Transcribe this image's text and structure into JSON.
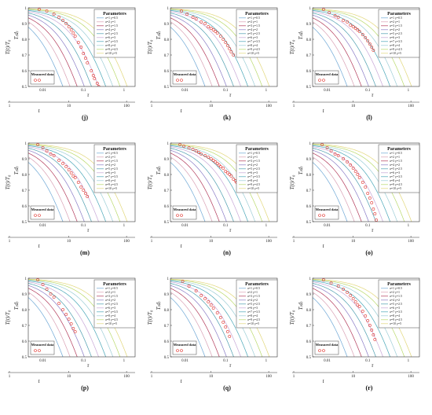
{
  "figure": {
    "legend_title": "Parameters",
    "legend_items": [
      "a=1  γ=0.5",
      "a=2  γ=1",
      "a=3  γ=1.5",
      "a=4  γ=2",
      "a=5  γ=2.5",
      "a=6  γ=3",
      "a=7  γ=3.5",
      "a=8  γ=4",
      "a=9  γ=4.5",
      "a=10  γ=5"
    ],
    "measured_label": "Measured data",
    "y_label": "T(t)/T₀",
    "y_label_inner": "T₍d₎",
    "x_label": "t",
    "x_label_inner": "τ"
  },
  "chart_data": [
    {
      "type": "line",
      "panel_label": "(j)",
      "ylim": [
        0.5,
        1
      ],
      "y_ticks": [
        "0.5",
        "0.6",
        "0.7",
        "0.8",
        "0.9",
        "1"
      ],
      "x_ticks_outer": [
        "1",
        "10",
        "100"
      ],
      "x_ticks_inner": [
        "0.01",
        "0.1",
        "1"
      ],
      "series": [
        {
          "name": "a=1  γ=0.5"
        },
        {
          "name": "a=2  γ=1"
        },
        {
          "name": "a=3  γ=1.5"
        },
        {
          "name": "a=4  γ=2"
        },
        {
          "name": "a=5  γ=2.5"
        },
        {
          "name": "a=6  γ=3"
        },
        {
          "name": "a=7  γ=3.5"
        },
        {
          "name": "a=8  γ=4"
        },
        {
          "name": "a=9  γ=4.5"
        },
        {
          "name": "a=10  γ=5"
        }
      ],
      "measured": {
        "x": [
          1.3,
          2,
          3,
          4,
          5,
          6,
          7,
          8,
          9,
          10,
          12,
          14,
          16,
          18,
          20,
          25,
          28,
          30,
          35,
          38
        ],
        "y": [
          0.99,
          0.98,
          0.96,
          0.94,
          0.92,
          0.9,
          0.88,
          0.86,
          0.84,
          0.82,
          0.78,
          0.75,
          0.71,
          0.68,
          0.65,
          0.6,
          0.57,
          0.55,
          0.52,
          0.5
        ]
      }
    },
    {
      "type": "line",
      "panel_label": "(k)",
      "ylim": [
        0.5,
        1
      ],
      "y_ticks": [
        "0.5",
        "0.6",
        "0.7",
        "0.8",
        "0.9",
        "1"
      ],
      "x_ticks_outer": [
        "1",
        "10",
        "100"
      ],
      "x_ticks_inner": [
        "0.01",
        "0.1",
        "1"
      ],
      "series": [
        {
          "name": "a=1  γ=0.5"
        },
        {
          "name": "a=2  γ=1"
        },
        {
          "name": "a=3  γ=1.5"
        },
        {
          "name": "a=4  γ=2"
        },
        {
          "name": "a=5  γ=2.5"
        },
        {
          "name": "a=6  γ=3"
        },
        {
          "name": "a=7  γ=3.5"
        },
        {
          "name": "a=8  γ=4"
        },
        {
          "name": "a=9  γ=4.5"
        },
        {
          "name": "a=10  γ=5"
        }
      ],
      "measured": {
        "x": [
          1.3,
          1.8,
          2.5,
          3,
          4,
          5,
          6,
          7,
          8,
          9,
          10,
          12,
          14,
          16,
          18,
          20,
          22,
          25
        ],
        "y": [
          0.98,
          0.96,
          0.94,
          0.93,
          0.91,
          0.9,
          0.88,
          0.87,
          0.86,
          0.85,
          0.84,
          0.82,
          0.8,
          0.78,
          0.76,
          0.74,
          0.72,
          0.7
        ]
      }
    },
    {
      "type": "line",
      "panel_label": "(l)",
      "ylim": [
        0.5,
        1
      ],
      "y_ticks": [
        "0.5",
        "0.6",
        "0.7",
        "0.8",
        "0.9",
        "1"
      ],
      "x_ticks_outer": [
        "1",
        "10",
        "100"
      ],
      "x_ticks_inner": [
        "0.01",
        "0.1",
        "1"
      ],
      "series": [
        {
          "name": "a=1  γ=0.5"
        },
        {
          "name": "a=2  γ=1"
        },
        {
          "name": "a=3  γ=1.5"
        },
        {
          "name": "a=4  γ=2"
        },
        {
          "name": "a=5  γ=2.5"
        },
        {
          "name": "a=6  γ=3"
        },
        {
          "name": "a=7  γ=3.5"
        },
        {
          "name": "a=8  γ=4"
        },
        {
          "name": "a=9  γ=4.5"
        },
        {
          "name": "a=10  γ=5"
        }
      ],
      "measured": {
        "x": [
          1.3,
          1.8,
          2.5,
          3,
          4,
          5,
          6,
          7,
          8,
          9,
          10,
          12,
          14,
          16,
          18,
          20,
          22
        ],
        "y": [
          0.99,
          0.97,
          0.95,
          0.94,
          0.92,
          0.91,
          0.89,
          0.88,
          0.87,
          0.86,
          0.85,
          0.83,
          0.81,
          0.79,
          0.77,
          0.75,
          0.73
        ]
      }
    },
    {
      "type": "line",
      "panel_label": "(m)",
      "ylim": [
        0.5,
        1
      ],
      "y_ticks": [
        "0.5",
        "0.6",
        "0.7",
        "0.8",
        "0.9",
        "1"
      ],
      "x_ticks_outer": [
        "1",
        "10",
        "100"
      ],
      "x_ticks_inner": [
        "0.01",
        "0.1",
        "1"
      ],
      "series": [
        {
          "name": "a=1  γ=0.5"
        },
        {
          "name": "a=2  γ=1"
        },
        {
          "name": "a=3  γ=1.5"
        },
        {
          "name": "a=4  γ=2"
        },
        {
          "name": "a=5  γ=2.5"
        },
        {
          "name": "a=6  γ=3"
        },
        {
          "name": "a=7  γ=3.5"
        },
        {
          "name": "a=8  γ=4"
        },
        {
          "name": "a=9  γ=4.5"
        },
        {
          "name": "a=10  γ=5"
        }
      ],
      "measured": {
        "x": [
          1.2,
          1.6,
          2,
          2.5,
          3,
          4,
          5,
          6,
          7,
          8,
          9,
          10,
          12,
          14,
          16,
          18,
          20
        ],
        "y": [
          0.99,
          0.97,
          0.95,
          0.93,
          0.92,
          0.89,
          0.87,
          0.85,
          0.83,
          0.81,
          0.79,
          0.78,
          0.75,
          0.72,
          0.7,
          0.68,
          0.66
        ]
      }
    },
    {
      "type": "line",
      "panel_label": "(n)",
      "ylim": [
        0.5,
        1
      ],
      "y_ticks": [
        "0.5",
        "0.6",
        "0.7",
        "0.8",
        "0.9",
        "1"
      ],
      "x_ticks_outer": [
        "1",
        "10",
        "100"
      ],
      "x_ticks_inner": [
        "0.01",
        "0.1",
        "1"
      ],
      "series": [
        {
          "name": "a=1  γ=0.5"
        },
        {
          "name": "a=2  γ=1"
        },
        {
          "name": "a=3  γ=1.5"
        },
        {
          "name": "a=4  γ=2"
        },
        {
          "name": "a=5  γ=2.5"
        },
        {
          "name": "a=6  γ=3"
        },
        {
          "name": "a=7  γ=3.5"
        },
        {
          "name": "a=8  γ=4"
        },
        {
          "name": "a=9  γ=4.5"
        },
        {
          "name": "a=10  γ=5"
        }
      ],
      "measured": {
        "x": [
          1.2,
          1.5,
          2,
          2.5,
          3,
          3.5,
          4,
          5,
          6,
          7,
          8,
          9,
          10,
          11,
          12,
          14,
          16,
          18,
          20,
          22,
          25,
          28,
          30,
          32,
          35
        ],
        "y": [
          0.99,
          0.98,
          0.97,
          0.96,
          0.95,
          0.94,
          0.93,
          0.92,
          0.91,
          0.9,
          0.89,
          0.88,
          0.87,
          0.86,
          0.85,
          0.84,
          0.82,
          0.81,
          0.8,
          0.79,
          0.77,
          0.76,
          0.75,
          0.74,
          0.73
        ]
      }
    },
    {
      "type": "line",
      "panel_label": "(o)",
      "ylim": [
        0.5,
        1
      ],
      "y_ticks": [
        "0.5",
        "0.6",
        "0.7",
        "0.8",
        "0.9",
        "1"
      ],
      "x_ticks_outer": [
        "1",
        "10",
        "100"
      ],
      "x_ticks_inner": [
        "0.01",
        "0.1",
        "1"
      ],
      "series": [
        {
          "name": "a=1  γ=0.5"
        },
        {
          "name": "a=2  γ=1"
        },
        {
          "name": "a=3  γ=1.5"
        },
        {
          "name": "a=4  γ=2"
        },
        {
          "name": "a=5  γ=2.5"
        },
        {
          "name": "a=6  γ=3"
        },
        {
          "name": "a=7  γ=3.5"
        },
        {
          "name": "a=8  γ=4"
        },
        {
          "name": "a=9  γ=4.5"
        },
        {
          "name": "a=10  γ=5"
        }
      ],
      "measured": {
        "x": [
          1.2,
          1.6,
          2,
          2.5,
          3,
          4,
          5,
          6,
          7,
          8,
          9,
          10,
          12,
          14,
          16,
          18,
          20,
          22,
          24,
          26
        ],
        "y": [
          0.99,
          0.97,
          0.95,
          0.93,
          0.92,
          0.9,
          0.88,
          0.86,
          0.84,
          0.82,
          0.8,
          0.78,
          0.75,
          0.72,
          0.68,
          0.65,
          0.62,
          0.58,
          0.55,
          0.51
        ]
      }
    },
    {
      "type": "line",
      "panel_label": "(p)",
      "ylim": [
        0.5,
        1
      ],
      "y_ticks": [
        "0.5",
        "0.6",
        "0.7",
        "0.8",
        "0.9",
        "1"
      ],
      "x_ticks_outer": [
        "1",
        "10",
        "100"
      ],
      "x_ticks_inner": [
        "0.01",
        "0.1",
        "1"
      ],
      "series": [
        {
          "name": "a=1  γ=0.5"
        },
        {
          "name": "a=2  γ=1"
        },
        {
          "name": "a=3  γ=1.5"
        },
        {
          "name": "a=4  γ=2"
        },
        {
          "name": "a=5  γ=2.5"
        },
        {
          "name": "a=6  γ=3"
        },
        {
          "name": "a=7  γ=3.5"
        },
        {
          "name": "a=8  γ=4"
        },
        {
          "name": "a=9  γ=4.5"
        },
        {
          "name": "a=10  γ=5"
        }
      ],
      "measured": {
        "x": [
          1.2,
          1.6,
          2,
          2.5,
          3,
          4,
          5,
          6,
          7,
          8,
          9,
          10
        ],
        "y": [
          0.99,
          0.96,
          0.93,
          0.9,
          0.88,
          0.84,
          0.8,
          0.77,
          0.74,
          0.71,
          0.68,
          0.66
        ]
      }
    },
    {
      "type": "line",
      "panel_label": "(q)",
      "ylim": [
        0.5,
        1
      ],
      "y_ticks": [
        "0.5",
        "0.6",
        "0.7",
        "0.8",
        "0.9",
        "1"
      ],
      "x_ticks_outer": [
        "1",
        "10",
        "100"
      ],
      "x_ticks_inner": [
        "0.01",
        "0.1",
        "1"
      ],
      "series": [
        {
          "name": "a=1  γ=0.5"
        },
        {
          "name": "a=2  γ=1"
        },
        {
          "name": "a=3  γ=1.5"
        },
        {
          "name": "a=4  γ=2"
        },
        {
          "name": "a=5  γ=2.5"
        },
        {
          "name": "a=6  γ=3"
        },
        {
          "name": "a=7  γ=3.5"
        },
        {
          "name": "a=8  γ=4"
        },
        {
          "name": "a=9  γ=4.5"
        },
        {
          "name": "a=10  γ=5"
        }
      ],
      "measured": {
        "x": [
          1.4,
          2,
          3,
          4,
          5,
          6,
          7,
          8,
          10,
          12,
          14,
          16,
          18,
          20
        ],
        "y": [
          0.98,
          0.95,
          0.92,
          0.89,
          0.87,
          0.85,
          0.83,
          0.81,
          0.78,
          0.75,
          0.72,
          0.69,
          0.66,
          0.63
        ]
      }
    },
    {
      "type": "line",
      "panel_label": "(r)",
      "ylim": [
        0.5,
        1
      ],
      "y_ticks": [
        "0.5",
        "0.6",
        "0.7",
        "0.8",
        "0.9",
        "1"
      ],
      "x_ticks_outer": [
        "1",
        "10",
        "100"
      ],
      "x_ticks_inner": [
        "0.01",
        "0.1",
        "1"
      ],
      "series": [
        {
          "name": "a=1  γ=0.5"
        },
        {
          "name": "a=2  γ=1"
        },
        {
          "name": "a=3  γ=1.5"
        },
        {
          "name": "a=4  γ=2"
        },
        {
          "name": "a=5  γ=2.5"
        },
        {
          "name": "a=6  γ=3"
        },
        {
          "name": "a=7  γ=3.5"
        },
        {
          "name": "a=8  γ=4"
        },
        {
          "name": "a=9  γ=4.5"
        },
        {
          "name": "a=10  γ=5"
        }
      ],
      "measured": {
        "x": [
          1.3,
          2,
          3,
          4,
          5,
          6,
          7,
          8,
          9,
          10,
          12,
          14,
          16,
          18,
          20,
          22,
          24
        ],
        "y": [
          0.99,
          0.97,
          0.95,
          0.93,
          0.91,
          0.89,
          0.87,
          0.85,
          0.83,
          0.82,
          0.79,
          0.76,
          0.73,
          0.7,
          0.67,
          0.64,
          0.61
        ]
      }
    }
  ],
  "colors": {
    "series": [
      "#6fa8d6",
      "#d9a0b4",
      "#b23a5a",
      "#8a7cc6",
      "#4f9fb0",
      "#c7a6d6",
      "#4aa7b8",
      "#9ccdd6",
      "#b9d96a",
      "#e2d77a"
    ],
    "measured": "#e0302a",
    "axis": "#333333"
  }
}
